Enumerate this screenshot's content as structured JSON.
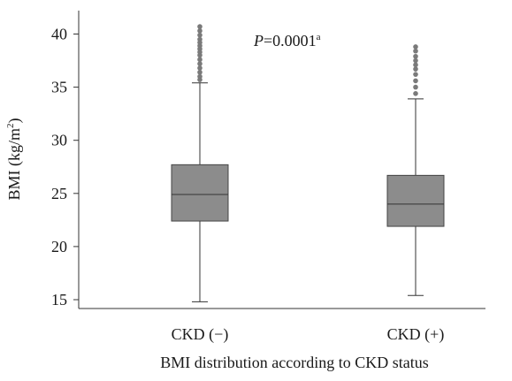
{
  "chart_data": {
    "type": "boxplot",
    "title": "",
    "xlabel": "BMI distribution according to CKD status",
    "ylabel": "BMI (kg/m",
    "ylabel_sup": "2",
    "ylabel_end": ")",
    "ylim": [
      14.5,
      42
    ],
    "yticks": [
      15,
      20,
      25,
      30,
      35,
      40
    ],
    "ytick_labels": [
      "15",
      "20",
      "25",
      "30",
      "35",
      "40"
    ],
    "grid": false,
    "annotation": {
      "italic": "P",
      "text": "=0.0001",
      "sup": "a"
    },
    "categories": [
      "CKD (−)",
      "CKD (+)"
    ],
    "boxes": [
      {
        "category": "CKD (−)",
        "whisker_low": 14.8,
        "q1": 22.4,
        "median": 24.9,
        "q3": 27.7,
        "whisker_high": 35.4,
        "outliers": [
          35.7,
          36.0,
          36.4,
          36.8,
          37.2,
          37.6,
          38.0,
          38.3,
          38.6,
          38.9,
          39.2,
          39.5,
          39.9,
          40.3,
          40.7
        ]
      },
      {
        "category": "CKD (+)",
        "whisker_low": 15.4,
        "q1": 21.9,
        "median": 24.0,
        "q3": 26.7,
        "whisker_high": 33.9,
        "outliers": [
          34.4,
          35.0,
          35.6,
          36.2,
          36.7,
          37.1,
          37.5,
          37.9,
          38.4,
          38.8
        ]
      }
    ]
  }
}
